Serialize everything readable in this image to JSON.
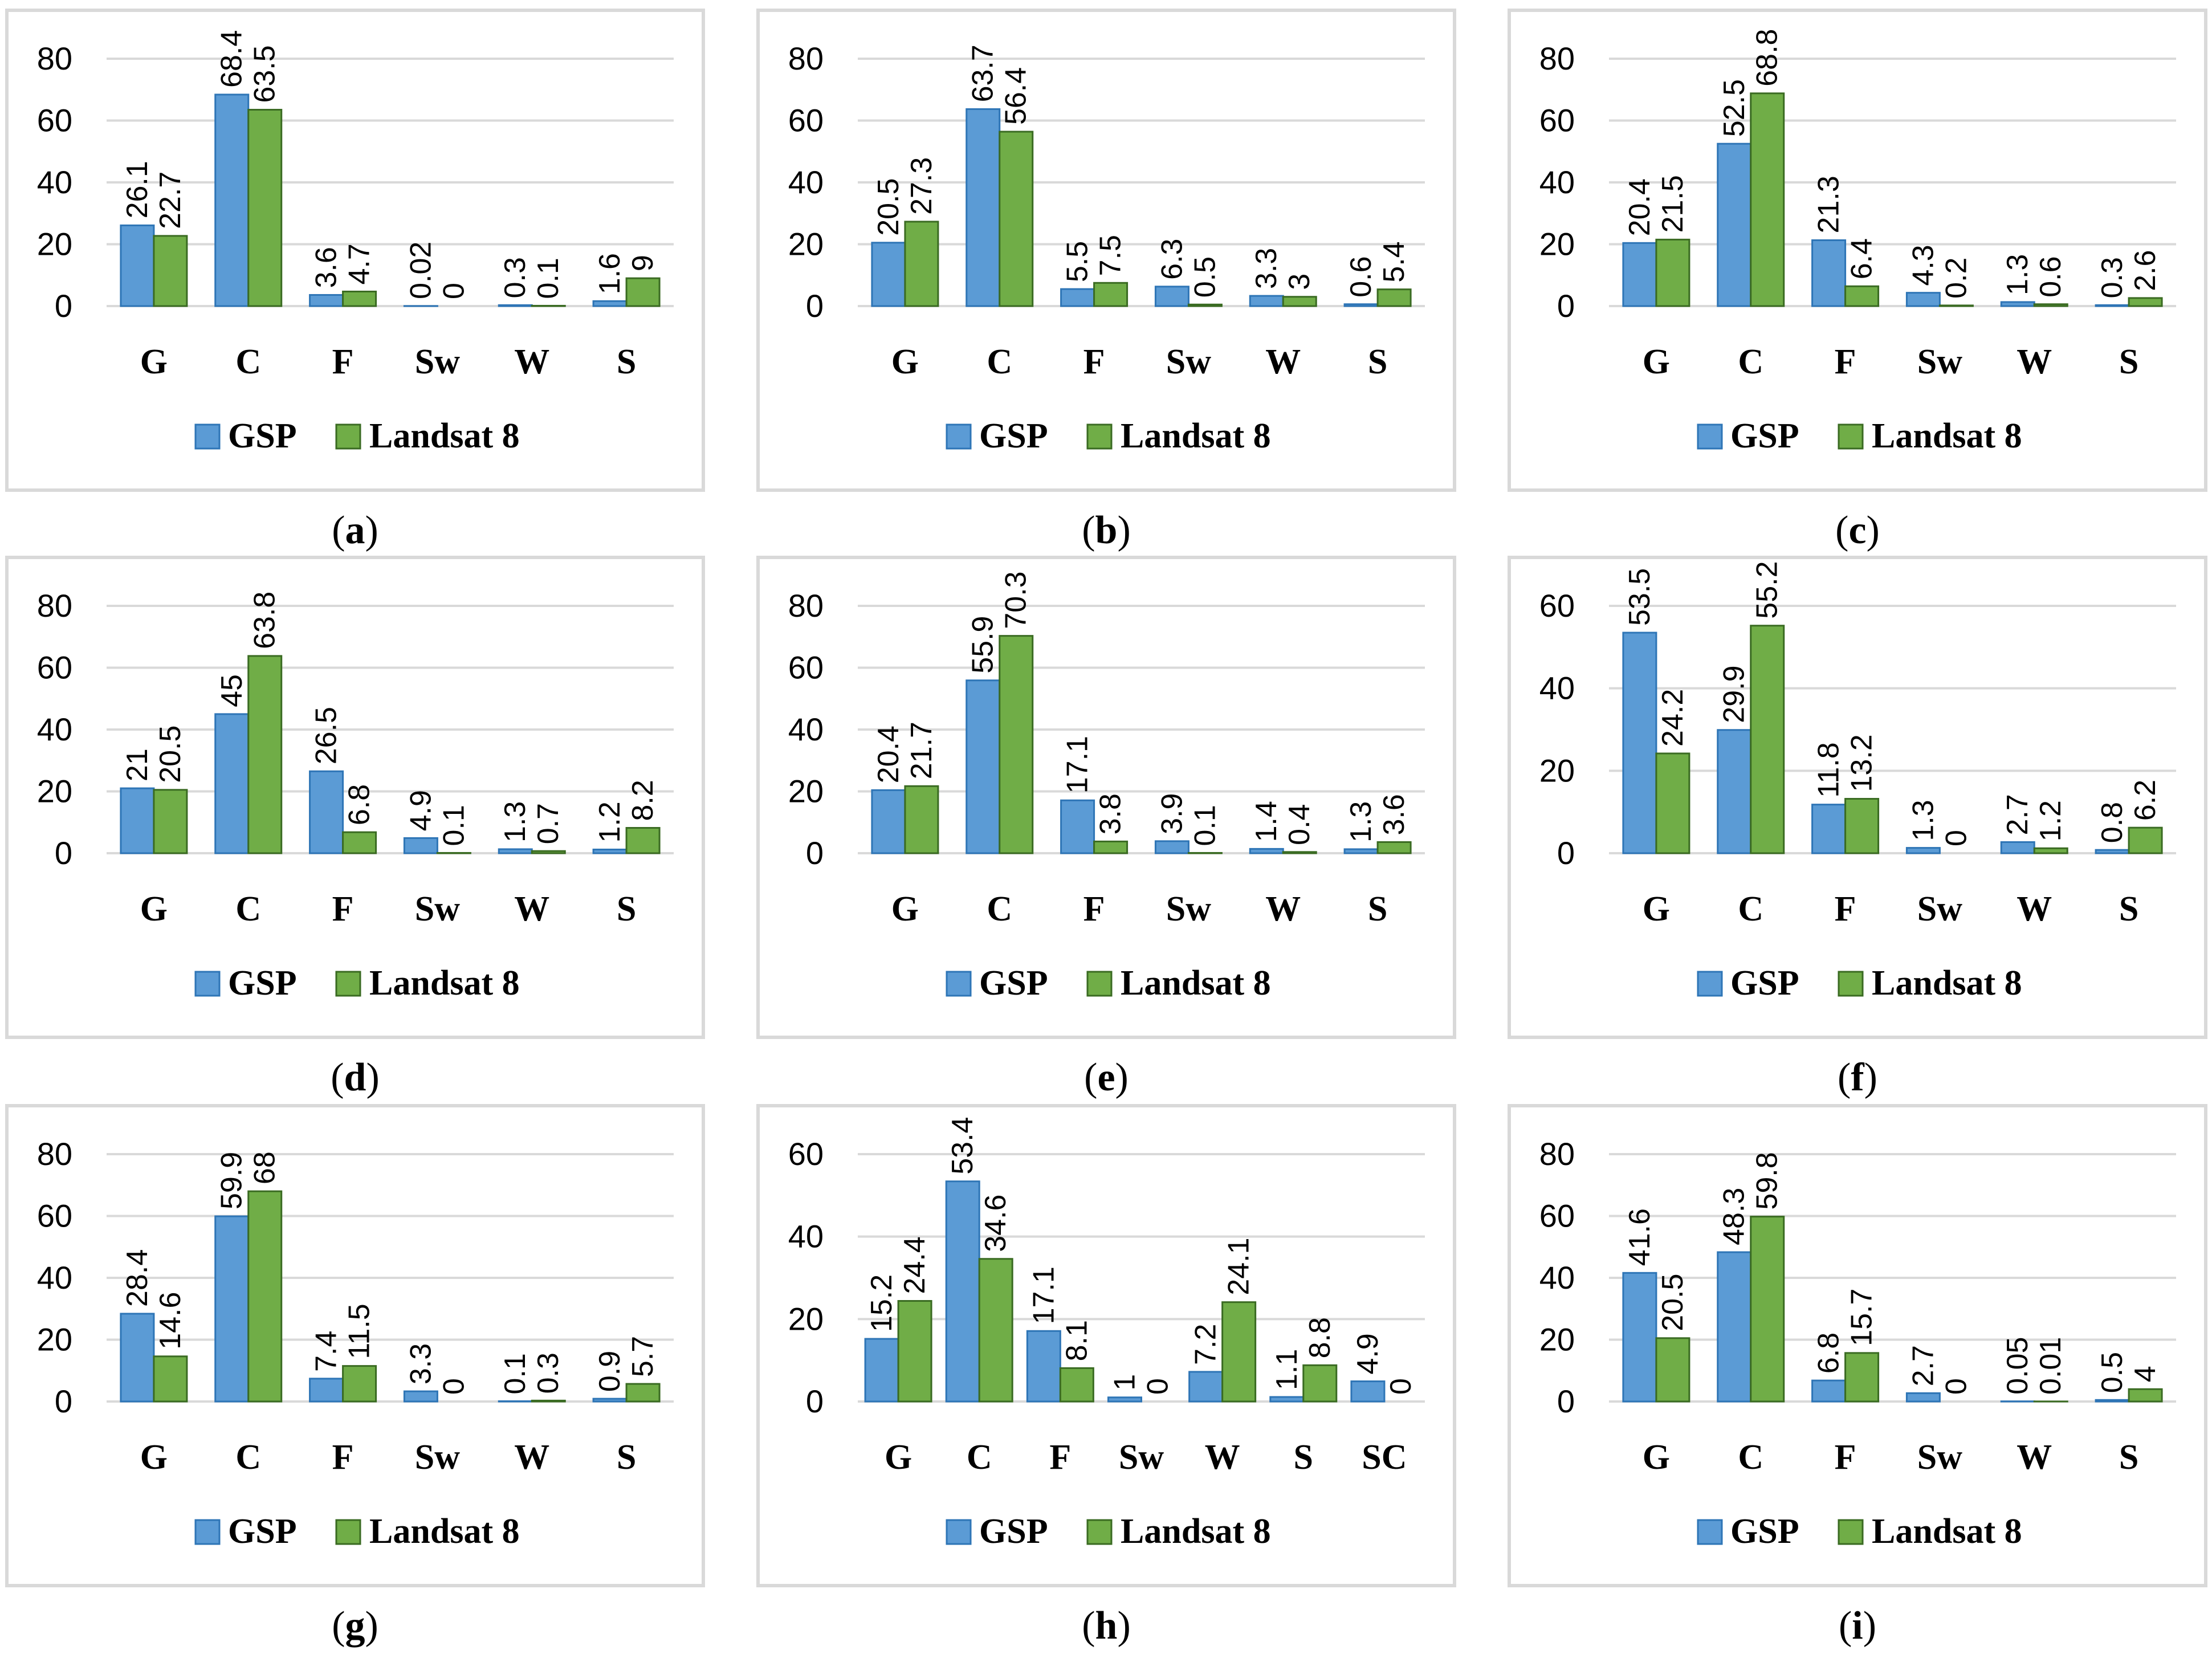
{
  "colors": {
    "gsp": "#5b9bd5",
    "gsp_edge": "#2e75b6",
    "landsat": "#70ad47",
    "landsat_edge": "#3a6b22"
  },
  "legend": {
    "series_a": "GSP",
    "series_b": "Landsat 8"
  },
  "chart_data": [
    {
      "type": "bar",
      "caption": "a",
      "ylim": [
        0,
        80
      ],
      "yticks": [
        "0",
        "20",
        "40",
        "60",
        "80"
      ],
      "categories": [
        "G",
        "C",
        "F",
        "Sw",
        "W",
        "S"
      ],
      "series": [
        {
          "name": "GSP",
          "values": [
            26.1,
            68.4,
            3.6,
            0.02,
            0.3,
            1.6
          ],
          "labels": [
            "26.1",
            "68.4",
            "3.6",
            "0.02",
            "0.3",
            "1.6"
          ]
        },
        {
          "name": "Landsat 8",
          "values": [
            22.7,
            63.5,
            4.7,
            0,
            0.1,
            9
          ],
          "labels": [
            "22.7",
            "63.5",
            "4.7",
            "0",
            "0.1",
            "9"
          ]
        }
      ]
    },
    {
      "type": "bar",
      "caption": "b",
      "ylim": [
        0,
        80
      ],
      "yticks": [
        "0",
        "20",
        "40",
        "60",
        "80"
      ],
      "categories": [
        "G",
        "C",
        "F",
        "Sw",
        "W",
        "S"
      ],
      "series": [
        {
          "name": "GSP",
          "values": [
            20.5,
            63.7,
            5.5,
            6.3,
            3.3,
            0.6
          ],
          "labels": [
            "20.5",
            "63.7",
            "5.5",
            "6.3",
            "3.3",
            "0.6"
          ]
        },
        {
          "name": "Landsat 8",
          "values": [
            27.3,
            56.4,
            7.5,
            0.5,
            3,
            5.4
          ],
          "labels": [
            "27.3",
            "56.4",
            "7.5",
            "0.5",
            "3",
            "5.4"
          ]
        }
      ]
    },
    {
      "type": "bar",
      "caption": "c",
      "ylim": [
        0,
        80
      ],
      "yticks": [
        "0",
        "20",
        "40",
        "60",
        "80"
      ],
      "categories": [
        "G",
        "C",
        "F",
        "Sw",
        "W",
        "S"
      ],
      "series": [
        {
          "name": "GSP",
          "values": [
            20.4,
            52.5,
            21.3,
            4.3,
            1.3,
            0.3
          ],
          "labels": [
            "20.4",
            "52.5",
            "21.3",
            "4.3",
            "1.3",
            "0.3"
          ]
        },
        {
          "name": "Landsat 8",
          "values": [
            21.5,
            68.8,
            6.4,
            0.2,
            0.6,
            2.6
          ],
          "labels": [
            "21.5",
            "68.8",
            "6.4",
            "0.2",
            "0.6",
            "2.6"
          ]
        }
      ]
    },
    {
      "type": "bar",
      "caption": "d",
      "ylim": [
        0,
        80
      ],
      "yticks": [
        "0",
        "20",
        "40",
        "60",
        "80"
      ],
      "categories": [
        "G",
        "C",
        "F",
        "Sw",
        "W",
        "S"
      ],
      "series": [
        {
          "name": "GSP",
          "values": [
            21,
            45,
            26.5,
            4.9,
            1.3,
            1.2
          ],
          "labels": [
            "21",
            "45",
            "26.5",
            "4.9",
            "1.3",
            "1.2"
          ]
        },
        {
          "name": "Landsat 8",
          "values": [
            20.5,
            63.8,
            6.8,
            0.1,
            0.7,
            8.2
          ],
          "labels": [
            "20.5",
            "63.8",
            "6.8",
            "0.1",
            "0.7",
            "8.2"
          ]
        }
      ]
    },
    {
      "type": "bar",
      "caption": "e",
      "ylim": [
        0,
        80
      ],
      "yticks": [
        "0",
        "20",
        "40",
        "60",
        "80"
      ],
      "categories": [
        "G",
        "C",
        "F",
        "Sw",
        "W",
        "S"
      ],
      "series": [
        {
          "name": "GSP",
          "values": [
            20.4,
            55.9,
            17.1,
            3.9,
            1.4,
            1.3
          ],
          "labels": [
            "20.4",
            "55.9",
            "17.1",
            "3.9",
            "1.4",
            "1.3"
          ]
        },
        {
          "name": "Landsat 8",
          "values": [
            21.7,
            70.3,
            3.8,
            0.1,
            0.4,
            3.6
          ],
          "labels": [
            "21.7",
            "70.3",
            "3.8",
            "0.1",
            "0.4",
            "3.6"
          ]
        }
      ]
    },
    {
      "type": "bar",
      "caption": "f",
      "ylim": [
        0,
        60
      ],
      "yticks": [
        "0",
        "20",
        "40",
        "60"
      ],
      "categories": [
        "G",
        "C",
        "F",
        "Sw",
        "W",
        "S"
      ],
      "series": [
        {
          "name": "GSP",
          "values": [
            53.5,
            29.9,
            11.8,
            1.3,
            2.7,
            0.8
          ],
          "labels": [
            "53.5",
            "29.9",
            "11.8",
            "1.3",
            "2.7",
            "0.8"
          ]
        },
        {
          "name": "Landsat 8",
          "values": [
            24.2,
            55.2,
            13.2,
            0,
            1.2,
            6.2
          ],
          "labels": [
            "24.2",
            "55.2",
            "13.2",
            "0",
            "1.2",
            "6.2"
          ]
        }
      ]
    },
    {
      "type": "bar",
      "caption": "g",
      "ylim": [
        0,
        80
      ],
      "yticks": [
        "0",
        "20",
        "40",
        "60",
        "80"
      ],
      "categories": [
        "G",
        "C",
        "F",
        "Sw",
        "W",
        "S"
      ],
      "series": [
        {
          "name": "GSP",
          "values": [
            28.4,
            59.9,
            7.4,
            3.3,
            0.1,
            0.9
          ],
          "labels": [
            "28.4",
            "59.9",
            "7.4",
            "3.3",
            "0.1",
            "0.9"
          ]
        },
        {
          "name": "Landsat 8",
          "values": [
            14.6,
            68,
            11.5,
            0,
            0.3,
            5.7
          ],
          "labels": [
            "14.6",
            "68",
            "11.5",
            "0",
            "0.3",
            "5.7"
          ]
        }
      ]
    },
    {
      "type": "bar",
      "caption": "h",
      "ylim": [
        0,
        60
      ],
      "yticks": [
        "0",
        "20",
        "40",
        "60"
      ],
      "categories": [
        "G",
        "C",
        "F",
        "Sw",
        "W",
        "S",
        "SC"
      ],
      "series": [
        {
          "name": "GSP",
          "values": [
            15.2,
            53.4,
            17.1,
            1,
            7.2,
            1.1,
            4.9
          ],
          "labels": [
            "15.2",
            "53.4",
            "17.1",
            "1",
            "7.2",
            "1.1",
            "4.9"
          ]
        },
        {
          "name": "Landsat 8",
          "values": [
            24.4,
            34.6,
            8.1,
            0,
            24.1,
            8.8,
            0
          ],
          "labels": [
            "24.4",
            "34.6",
            "8.1",
            "0",
            "24.1",
            "8.8",
            "0"
          ]
        }
      ]
    },
    {
      "type": "bar",
      "caption": "i",
      "ylim": [
        0,
        80
      ],
      "yticks": [
        "0",
        "20",
        "40",
        "60",
        "80"
      ],
      "categories": [
        "G",
        "C",
        "F",
        "Sw",
        "W",
        "S"
      ],
      "series": [
        {
          "name": "GSP",
          "values": [
            41.6,
            48.3,
            6.8,
            2.7,
            0.05,
            0.5
          ],
          "labels": [
            "41.6",
            "48.3",
            "6.8",
            "2.7",
            "0.05",
            "0.5"
          ]
        },
        {
          "name": "Landsat 8",
          "values": [
            20.5,
            59.8,
            15.7,
            0,
            0.01,
            4
          ],
          "labels": [
            "20.5",
            "59.8",
            "15.7",
            "0",
            "0.01",
            "4"
          ]
        }
      ]
    }
  ]
}
